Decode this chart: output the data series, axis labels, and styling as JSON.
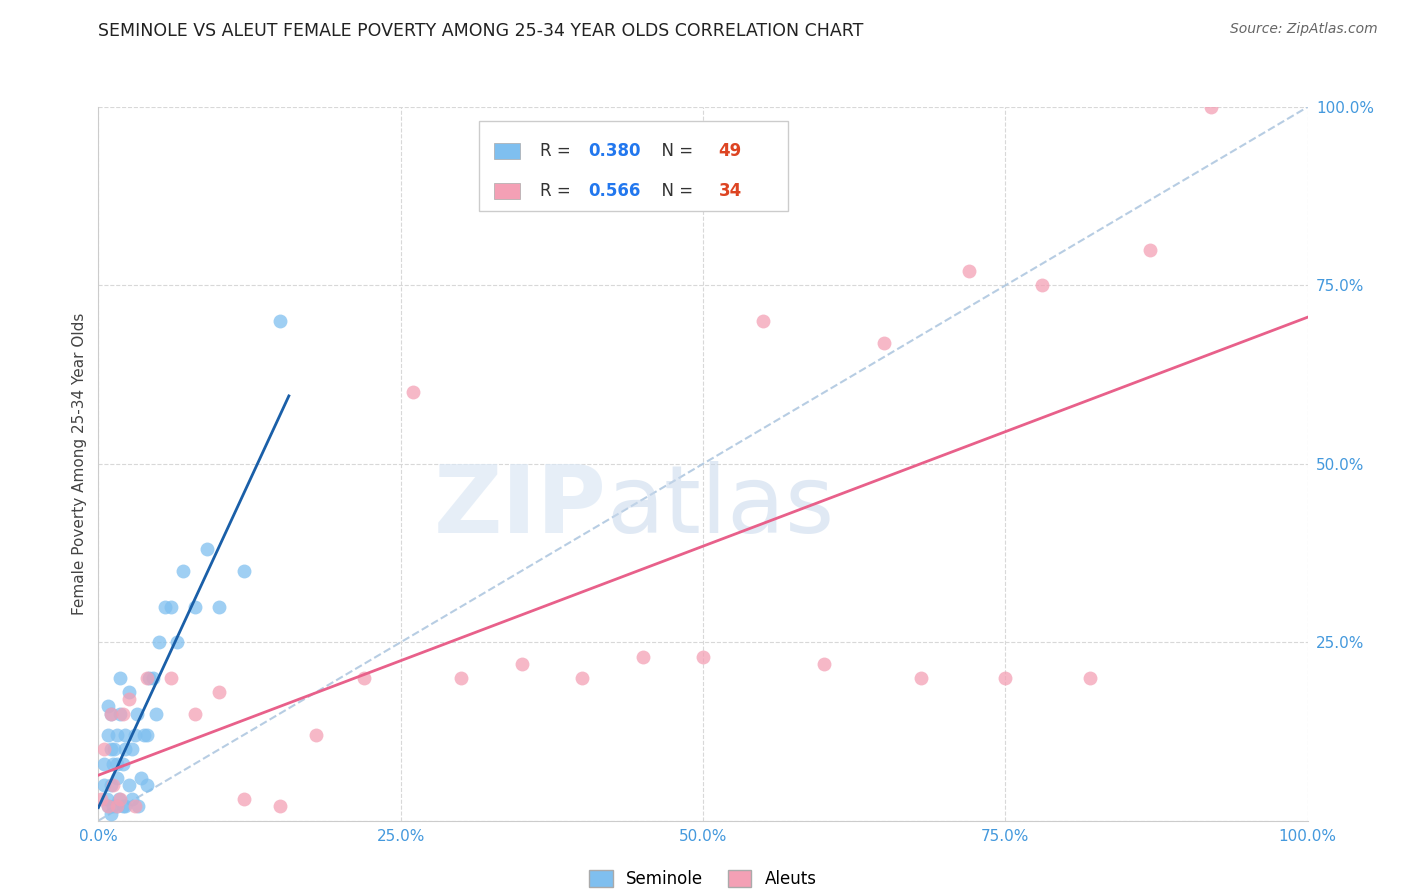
{
  "title": "SEMINOLE VS ALEUT FEMALE POVERTY AMONG 25-34 YEAR OLDS CORRELATION CHART",
  "source": "Source: ZipAtlas.com",
  "ylabel": "Female Poverty Among 25-34 Year Olds",
  "xlim": [
    0,
    1.0
  ],
  "ylim": [
    0,
    1.0
  ],
  "xticks": [
    0.0,
    0.25,
    0.5,
    0.75,
    1.0
  ],
  "yticks": [
    0.0,
    0.25,
    0.5,
    0.75,
    1.0
  ],
  "xticklabels": [
    "0.0%",
    "25.0%",
    "50.0%",
    "75.0%",
    "100.0%"
  ],
  "yticklabels": [
    "",
    "25.0%",
    "50.0%",
    "75.0%",
    "100.0%"
  ],
  "seminole_color": "#7fbfef",
  "aleut_color": "#f4a0b5",
  "seminole_R": 0.38,
  "seminole_N": 49,
  "aleut_R": 0.566,
  "aleut_N": 34,
  "trendline_seminole_color": "#1a5fa8",
  "trendline_aleut_color": "#e8608a",
  "diagonal_color": "#b0c8e0",
  "seminole_x": [
    0.005,
    0.005,
    0.007,
    0.008,
    0.008,
    0.008,
    0.01,
    0.01,
    0.01,
    0.01,
    0.012,
    0.012,
    0.013,
    0.015,
    0.015,
    0.015,
    0.015,
    0.017,
    0.018,
    0.018,
    0.02,
    0.02,
    0.022,
    0.022,
    0.022,
    0.025,
    0.025,
    0.028,
    0.028,
    0.03,
    0.032,
    0.033,
    0.035,
    0.038,
    0.04,
    0.04,
    0.042,
    0.045,
    0.048,
    0.05,
    0.055,
    0.06,
    0.065,
    0.07,
    0.08,
    0.09,
    0.1,
    0.12,
    0.15
  ],
  "seminole_y": [
    0.05,
    0.08,
    0.03,
    0.02,
    0.12,
    0.16,
    0.01,
    0.05,
    0.1,
    0.15,
    0.02,
    0.08,
    0.1,
    0.02,
    0.06,
    0.08,
    0.12,
    0.03,
    0.15,
    0.2,
    0.02,
    0.08,
    0.02,
    0.1,
    0.12,
    0.05,
    0.18,
    0.03,
    0.1,
    0.12,
    0.15,
    0.02,
    0.06,
    0.12,
    0.05,
    0.12,
    0.2,
    0.2,
    0.15,
    0.25,
    0.3,
    0.3,
    0.25,
    0.35,
    0.3,
    0.38,
    0.3,
    0.35,
    0.7
  ],
  "aleut_x": [
    0.002,
    0.005,
    0.008,
    0.01,
    0.012,
    0.015,
    0.018,
    0.02,
    0.025,
    0.03,
    0.04,
    0.06,
    0.08,
    0.1,
    0.12,
    0.15,
    0.18,
    0.22,
    0.26,
    0.3,
    0.35,
    0.4,
    0.45,
    0.5,
    0.55,
    0.6,
    0.65,
    0.68,
    0.72,
    0.75,
    0.78,
    0.82,
    0.87,
    0.92
  ],
  "aleut_y": [
    0.03,
    0.1,
    0.02,
    0.15,
    0.05,
    0.02,
    0.03,
    0.15,
    0.17,
    0.02,
    0.2,
    0.2,
    0.15,
    0.18,
    0.03,
    0.02,
    0.12,
    0.2,
    0.6,
    0.2,
    0.22,
    0.2,
    0.23,
    0.23,
    0.7,
    0.22,
    0.67,
    0.2,
    0.77,
    0.2,
    0.75,
    0.2,
    0.8,
    1.0
  ],
  "background_color": "#ffffff",
  "grid_color": "#d8d8d8"
}
